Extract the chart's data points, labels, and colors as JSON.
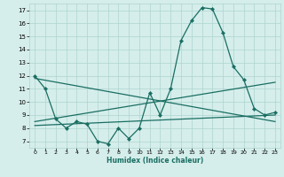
{
  "title": "",
  "xlabel": "Humidex (Indice chaleur)",
  "ylabel": "",
  "bg_color": "#d5eeeb",
  "grid_color": "#aed4cf",
  "line_color": "#1a6e62",
  "xlim": [
    -0.5,
    23.5
  ],
  "ylim": [
    6.5,
    17.5
  ],
  "xticks": [
    0,
    1,
    2,
    3,
    4,
    5,
    6,
    7,
    8,
    9,
    10,
    11,
    12,
    13,
    14,
    15,
    16,
    17,
    18,
    19,
    20,
    21,
    22,
    23
  ],
  "yticks": [
    7,
    8,
    9,
    10,
    11,
    12,
    13,
    14,
    15,
    16,
    17
  ],
  "series": [
    {
      "x": [
        0,
        1,
        2,
        3,
        4,
        5,
        6,
        7,
        8,
        9,
        10,
        11,
        12,
        13,
        14,
        15,
        16,
        17,
        18,
        19,
        20,
        21,
        22,
        23
      ],
      "y": [
        12,
        11,
        8.7,
        8,
        8.5,
        8.3,
        7.0,
        6.8,
        8.0,
        7.2,
        8.0,
        10.7,
        9.0,
        11.0,
        14.7,
        16.2,
        17.2,
        17.1,
        15.3,
        12.7,
        11.7,
        9.5,
        9.0,
        9.2
      ],
      "marker": "D",
      "markersize": 2.2,
      "linewidth": 0.9
    },
    {
      "x": [
        0,
        23
      ],
      "y": [
        11.8,
        8.5
      ],
      "marker": null,
      "markersize": 0,
      "linewidth": 0.9
    },
    {
      "x": [
        0,
        23
      ],
      "y": [
        8.5,
        11.5
      ],
      "marker": null,
      "markersize": 0,
      "linewidth": 0.9
    },
    {
      "x": [
        0,
        23
      ],
      "y": [
        8.2,
        9.0
      ],
      "marker": null,
      "markersize": 0,
      "linewidth": 0.9
    }
  ]
}
